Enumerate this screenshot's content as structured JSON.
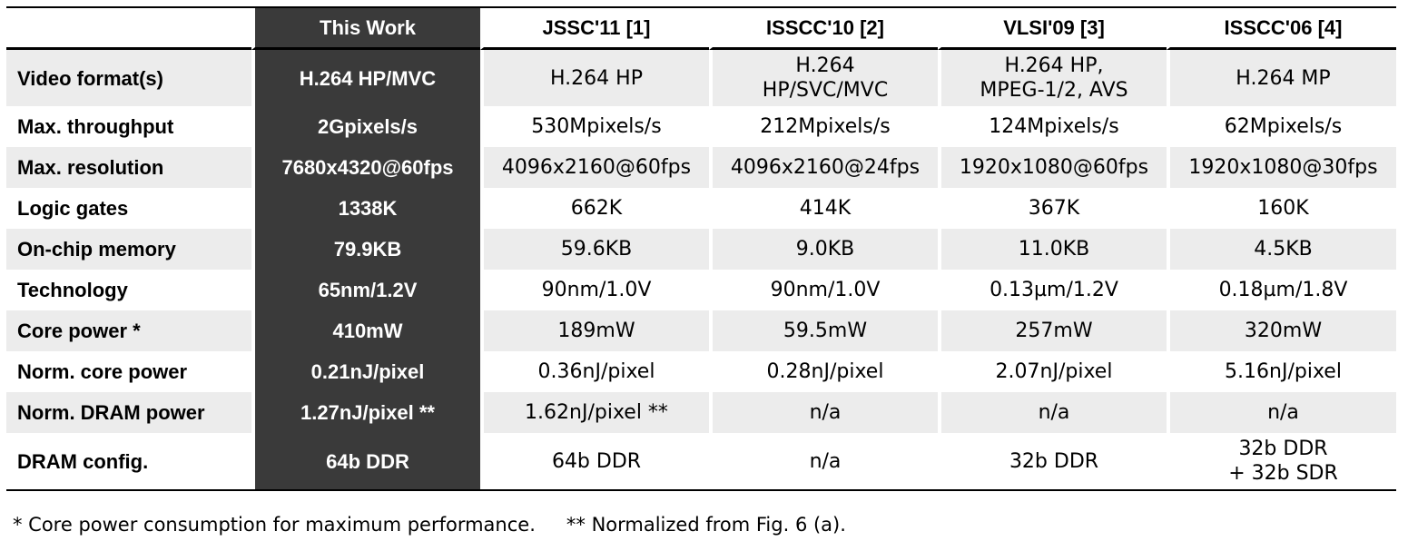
{
  "table": {
    "header": [
      "",
      "This Work",
      "JSSC'11 [1]",
      "ISSCC'10 [2]",
      "VLSI'09 [3]",
      "ISSCC'06 [4]"
    ],
    "rows": [
      {
        "label": "Video format(s)",
        "cells": [
          [
            "H.264 HP/MVC"
          ],
          [
            "H.264 HP"
          ],
          [
            "H.264",
            "HP/SVC/MVC"
          ],
          [
            "H.264 HP,",
            "MPEG-1/2, AVS"
          ],
          [
            "H.264 MP"
          ]
        ]
      },
      {
        "label": "Max. throughput",
        "cells": [
          [
            "2Gpixels/s"
          ],
          [
            "530Mpixels/s"
          ],
          [
            "212Mpixels/s"
          ],
          [
            "124Mpixels/s"
          ],
          [
            "62Mpixels/s"
          ]
        ]
      },
      {
        "label": "Max. resolution",
        "cells": [
          [
            "7680x4320@60fps"
          ],
          [
            "4096x2160@60fps"
          ],
          [
            "4096x2160@24fps"
          ],
          [
            "1920x1080@60fps"
          ],
          [
            "1920x1080@30fps"
          ]
        ]
      },
      {
        "label": "Logic gates",
        "cells": [
          [
            "1338K"
          ],
          [
            "662K"
          ],
          [
            "414K"
          ],
          [
            "367K"
          ],
          [
            "160K"
          ]
        ]
      },
      {
        "label": "On-chip memory",
        "cells": [
          [
            "79.9KB"
          ],
          [
            "59.6KB"
          ],
          [
            "9.0KB"
          ],
          [
            "11.0KB"
          ],
          [
            "4.5KB"
          ]
        ]
      },
      {
        "label": "Technology",
        "cells": [
          [
            "65nm/1.2V"
          ],
          [
            "90nm/1.0V"
          ],
          [
            "90nm/1.0V"
          ],
          [
            "0.13µm/1.2V"
          ],
          [
            "0.18µm/1.8V"
          ]
        ]
      },
      {
        "label": "Core power *",
        "cells": [
          [
            "410mW"
          ],
          [
            "189mW"
          ],
          [
            "59.5mW"
          ],
          [
            "257mW"
          ],
          [
            "320mW"
          ]
        ]
      },
      {
        "label": "Norm. core power",
        "cells": [
          [
            "0.21nJ/pixel"
          ],
          [
            "0.36nJ/pixel"
          ],
          [
            "0.28nJ/pixel"
          ],
          [
            "2.07nJ/pixel"
          ],
          [
            "5.16nJ/pixel"
          ]
        ]
      },
      {
        "label": "Norm. DRAM power",
        "cells": [
          [
            "1.27nJ/pixel **"
          ],
          [
            "1.62nJ/pixel **"
          ],
          [
            "n/a"
          ],
          [
            "n/a"
          ],
          [
            "n/a"
          ]
        ]
      },
      {
        "label": "DRAM config.",
        "cells": [
          [
            "64b DDR"
          ],
          [
            "64b DDR"
          ],
          [
            "n/a"
          ],
          [
            "32b DDR"
          ],
          [
            "32b DDR",
            "+ 32b SDR"
          ]
        ]
      }
    ]
  },
  "footnotes": [
    "* Core power consumption for maximum performance.",
    "** Normalized from Fig. 6 (a)."
  ],
  "colors": {
    "highlight_column": "#3a3a3a",
    "shaded_row": "#ececec",
    "rule": "#000000"
  }
}
